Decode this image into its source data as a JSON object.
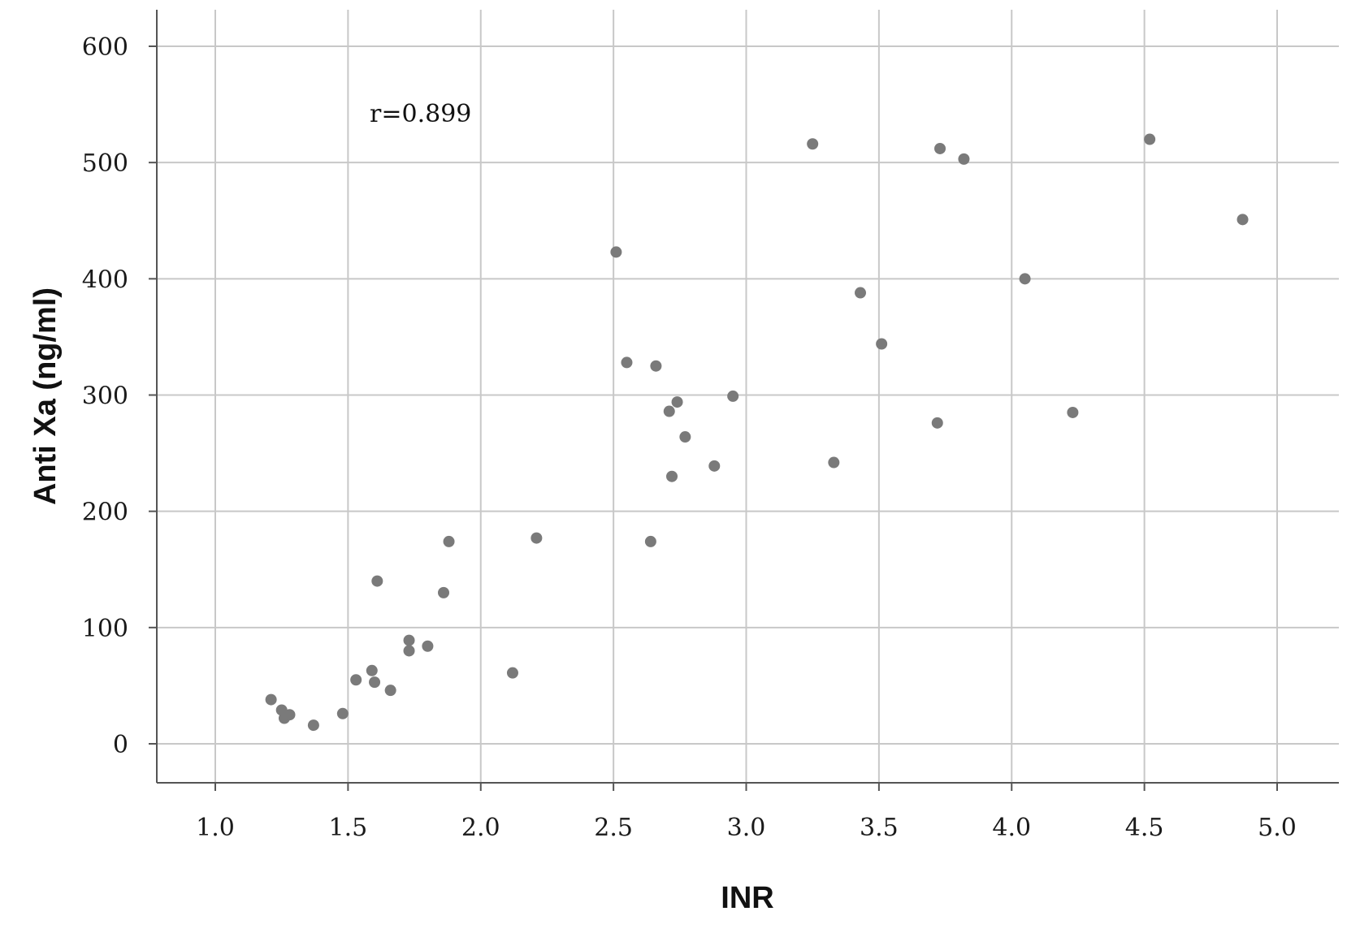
{
  "chart_data": {
    "type": "scatter",
    "title": "",
    "xlabel": "INR",
    "ylabel": "Anti Xa (ng/ml)",
    "xlim": [
      0.78,
      5.2
    ],
    "ylim": [
      -34,
      632
    ],
    "xticks": [
      1.0,
      1.5,
      2.0,
      2.5,
      3.0,
      3.5,
      4.0,
      4.5,
      5.0
    ],
    "xtick_labels": [
      "1.0",
      "1.5",
      "2.0",
      "2.5",
      "3.0",
      "3.5",
      "4.0",
      "4.5",
      "5.0"
    ],
    "yticks": [
      0,
      100,
      200,
      300,
      400,
      500,
      600
    ],
    "ytick_labels": [
      "0",
      "100",
      "200",
      "300",
      "400",
      "500",
      "600"
    ],
    "grid": true,
    "annotation": "r=0.899",
    "marker_color": "#7a7a7a",
    "grid_color": "#c8c8c8",
    "axis_color": "#555555",
    "points": [
      {
        "x": 1.21,
        "y": 38
      },
      {
        "x": 1.25,
        "y": 29
      },
      {
        "x": 1.26,
        "y": 22
      },
      {
        "x": 1.28,
        "y": 25
      },
      {
        "x": 1.37,
        "y": 16
      },
      {
        "x": 1.48,
        "y": 26
      },
      {
        "x": 1.53,
        "y": 55
      },
      {
        "x": 1.59,
        "y": 63
      },
      {
        "x": 1.6,
        "y": 53
      },
      {
        "x": 1.61,
        "y": 140
      },
      {
        "x": 1.66,
        "y": 46
      },
      {
        "x": 1.73,
        "y": 89
      },
      {
        "x": 1.73,
        "y": 80
      },
      {
        "x": 1.8,
        "y": 84
      },
      {
        "x": 1.86,
        "y": 130
      },
      {
        "x": 1.88,
        "y": 174
      },
      {
        "x": 2.12,
        "y": 61
      },
      {
        "x": 2.21,
        "y": 177
      },
      {
        "x": 2.51,
        "y": 423
      },
      {
        "x": 2.55,
        "y": 328
      },
      {
        "x": 2.64,
        "y": 174
      },
      {
        "x": 2.66,
        "y": 325
      },
      {
        "x": 2.71,
        "y": 286
      },
      {
        "x": 2.72,
        "y": 230
      },
      {
        "x": 2.74,
        "y": 294
      },
      {
        "x": 2.77,
        "y": 264
      },
      {
        "x": 2.88,
        "y": 239
      },
      {
        "x": 2.95,
        "y": 299
      },
      {
        "x": 3.25,
        "y": 516
      },
      {
        "x": 3.33,
        "y": 242
      },
      {
        "x": 3.43,
        "y": 388
      },
      {
        "x": 3.51,
        "y": 344
      },
      {
        "x": 3.72,
        "y": 276
      },
      {
        "x": 3.73,
        "y": 512
      },
      {
        "x": 3.82,
        "y": 503
      },
      {
        "x": 4.05,
        "y": 400
      },
      {
        "x": 4.23,
        "y": 285
      },
      {
        "x": 4.52,
        "y": 520
      },
      {
        "x": 4.87,
        "y": 451
      }
    ]
  }
}
